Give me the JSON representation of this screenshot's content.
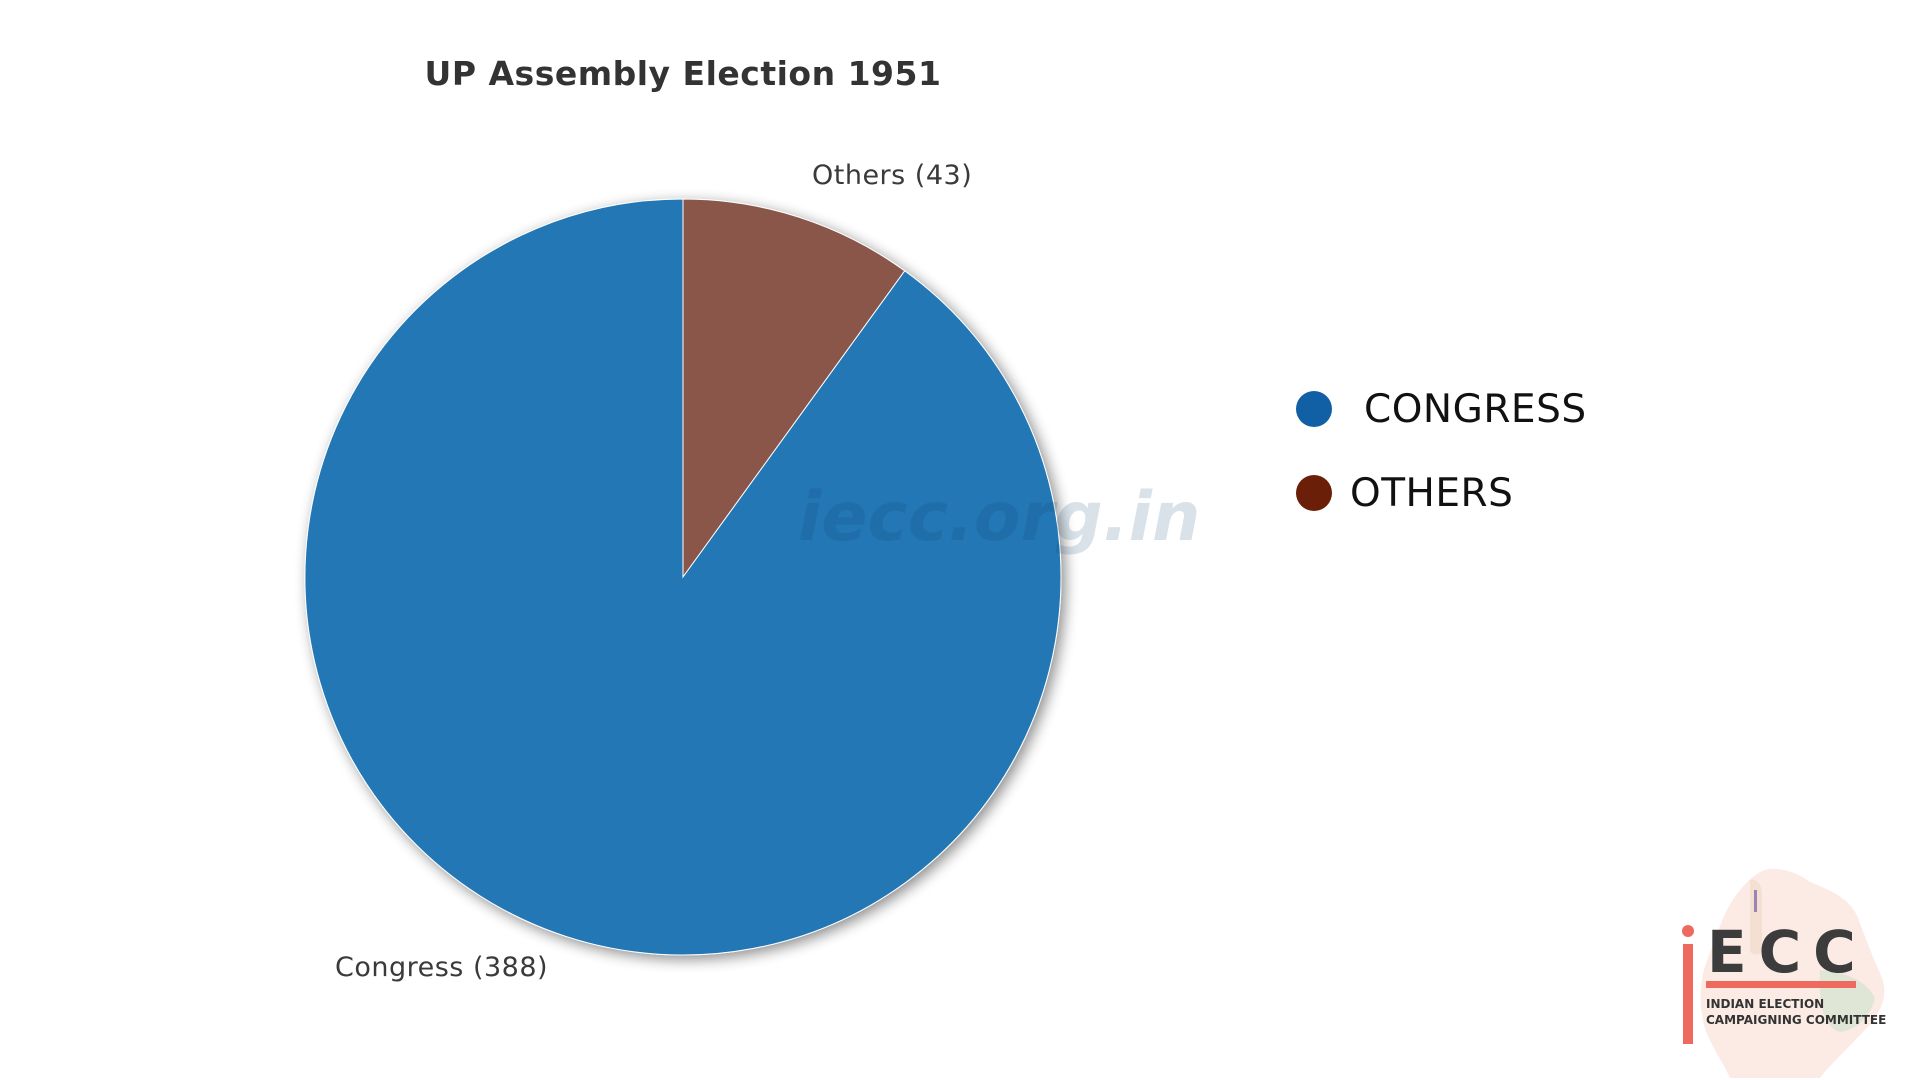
{
  "chart_data": {
    "type": "pie",
    "title": "UP Assembly Election 1951",
    "categories": [
      "Congress",
      "Others"
    ],
    "values": [
      388,
      43
    ],
    "slice_labels": [
      "Congress (388)",
      "Others (43)"
    ],
    "colors": [
      "#2177b4",
      "#8a564a"
    ],
    "legend": {
      "placement": "right",
      "entries": [
        {
          "label": "CONGRESS",
          "color": "#1160a6"
        },
        {
          "label": "OTHERS",
          "color": "#6b1e08"
        }
      ]
    }
  },
  "watermark": "iecc.org.in",
  "logo": {
    "letters": "ECC",
    "line1": "INDIAN ELECTION",
    "line2": "CAMPAIGNING COMMITTEE"
  }
}
